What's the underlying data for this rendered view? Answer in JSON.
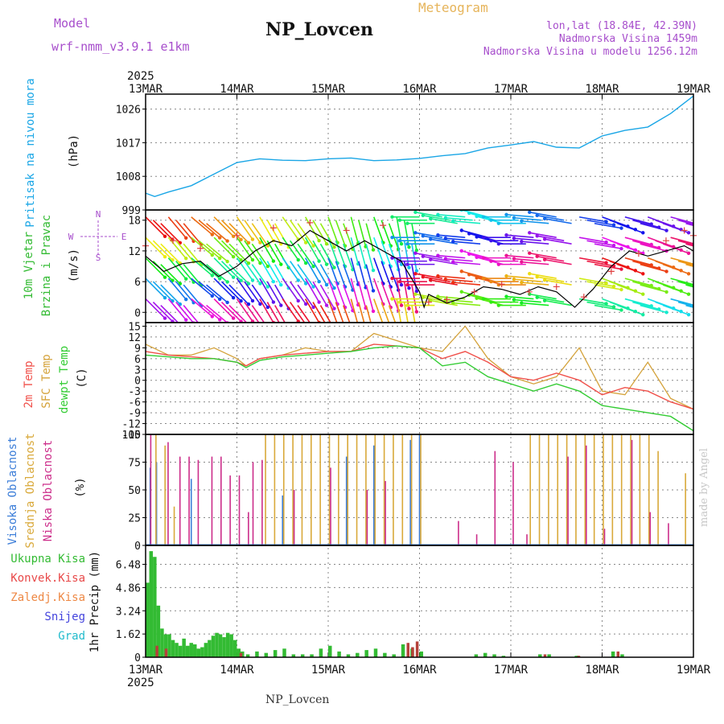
{
  "header": {
    "model_label": "Model",
    "model_name": "wrf-nmm_v3.9.1  e1km",
    "title": "NP_Lovcen",
    "product": "Meteogram",
    "location": "lon,lat (18.84E, 42.39N)",
    "elevation": "Nadmorska Visina 1459m",
    "model_elevation": "Nadmorska Visina u modelu 1256.12m",
    "footer_station": "NP_Lovcen",
    "credit": "made by Angel"
  },
  "colors": {
    "pressure": "#1aa6e6",
    "temp2m": "#f0504a",
    "sfc_temp": "#d4a23a",
    "dewpoint": "#33cc33",
    "cloud_high": "#3b7dd8",
    "cloud_mid": "#d9a93a",
    "cloud_low": "#cc2d8a",
    "precip_total": "#33bb33",
    "precip_conv": "#b5413a",
    "wind_speed": "#000000",
    "wind_gust": "#e04040",
    "grid": "#888888"
  },
  "time_axis": {
    "top_year": "2025",
    "bottom_year": "2025",
    "ticks": [
      "13MAR",
      "14MAR",
      "15MAR",
      "16MAR",
      "17MAR",
      "18MAR",
      "19MAR"
    ]
  },
  "panels": {
    "pressure": {
      "label_line1": "Pritisak na nivou mora",
      "unit": "(hPa)"
    },
    "wind": {
      "label_line1": "10m Vjetar",
      "label_line2": "Brzina i Pravac",
      "unit": "(m/s)",
      "compass_n": "N",
      "compass_s": "S",
      "compass_w": "W",
      "compass_e": "E"
    },
    "temp": {
      "label_2m": "2m Temp",
      "label_sfc": "SFC Temp",
      "label_dew": "dewpt Temp",
      "unit": "(C)"
    },
    "cloud": {
      "label_high": "Visoka Oblacnost",
      "label_mid": "Srednja Oblacnost",
      "label_low": "Niska Oblacnost",
      "unit": "(%)"
    },
    "precip": {
      "unit_label": "1hr Precip (mm)",
      "legend": [
        "Ukupna Kisa",
        "Konvek.Kisa",
        "Zaledj.Kisa",
        "Snijeg",
        "Grad"
      ]
    }
  },
  "chart_data": [
    {
      "type": "line",
      "panel": "pressure",
      "ylim": [
        999,
        1030
      ],
      "yticks": [
        "1026",
        "1017",
        "1008",
        "999"
      ],
      "ytick_values": [
        1026,
        1017,
        1008,
        999
      ],
      "series": [
        {
          "name": "Pritisak na nivou mora",
          "x": [
            0,
            0.1,
            0.25,
            0.5,
            0.75,
            1,
            1.25,
            1.5,
            1.75,
            2,
            2.25,
            2.5,
            2.75,
            3,
            3.25,
            3.5,
            3.75,
            4,
            4.25,
            4.5,
            4.75,
            5,
            5.25,
            5.5,
            5.75,
            6
          ],
          "values": [
            1003.5,
            1002.6,
            1003.8,
            1005.5,
            1008.6,
            1011.7,
            1012.7,
            1012.3,
            1012.2,
            1012.7,
            1012.9,
            1012.2,
            1012.4,
            1012.8,
            1013.5,
            1014.1,
            1015.6,
            1016.4,
            1017.3,
            1015.8,
            1015.6,
            1018.8,
            1020.3,
            1021.2,
            1024.8,
            1029.5
          ]
        }
      ]
    },
    {
      "type": "line",
      "panel": "wind",
      "ylim": [
        -2,
        20
      ],
      "yticks": [
        "18",
        "12",
        "6",
        "0"
      ],
      "ytick_values": [
        18,
        12,
        6,
        0
      ],
      "series": [
        {
          "name": "speed",
          "x": [
            0,
            0.2,
            0.4,
            0.6,
            0.8,
            1,
            1.2,
            1.4,
            1.6,
            1.8,
            2,
            2.2,
            2.4,
            2.6,
            2.8,
            3,
            3.05,
            3.1,
            3.3,
            3.5,
            3.7,
            3.9,
            4.1,
            4.3,
            4.5,
            4.7,
            4.9,
            5.1,
            5.3,
            5.5,
            5.7,
            5.9,
            6
          ],
          "values": [
            11,
            8,
            9.5,
            10,
            7,
            9,
            12,
            14,
            13,
            16,
            14,
            12,
            14,
            12,
            10,
            4,
            1,
            3.5,
            1.8,
            3,
            5,
            4.5,
            3.5,
            5,
            4,
            1,
            4.5,
            9,
            12,
            11,
            12,
            13,
            12
          ]
        },
        {
          "name": "gust",
          "x": [
            0,
            0.3,
            0.6,
            1,
            1.4,
            1.8,
            2.2,
            2.6,
            3.1,
            3.3,
            3.6,
            3.9,
            4.2,
            4.5,
            4.8,
            5.1,
            5.4,
            5.7,
            5.9,
            6
          ],
          "values": [
            13,
            14,
            12.5,
            15,
            16.5,
            17.5,
            16,
            17,
            2,
            2.5,
            4,
            5.5,
            4,
            5,
            3,
            8,
            11.5,
            14,
            16,
            15
          ]
        }
      ],
      "barbs": [
        {
          "x": 0.0,
          "dir": 225
        },
        {
          "x": 0.25,
          "dir": 220
        },
        {
          "x": 0.5,
          "dir": 230
        },
        {
          "x": 0.75,
          "dir": 225
        },
        {
          "x": 1.0,
          "dir": 215
        },
        {
          "x": 1.25,
          "dir": 210
        },
        {
          "x": 1.5,
          "dir": 215
        },
        {
          "x": 1.75,
          "dir": 210
        },
        {
          "x": 2.0,
          "dir": 200
        },
        {
          "x": 2.25,
          "dir": 195
        },
        {
          "x": 2.5,
          "dir": 200
        },
        {
          "x": 2.75,
          "dir": 190
        },
        {
          "x": 3.0,
          "dir": 90
        },
        {
          "x": 3.25,
          "dir": 80
        },
        {
          "x": 3.5,
          "dir": 85
        },
        {
          "x": 3.75,
          "dir": 75
        },
        {
          "x": 4.0,
          "dir": 90
        },
        {
          "x": 4.25,
          "dir": 85
        },
        {
          "x": 4.5,
          "dir": 80
        },
        {
          "x": 4.75,
          "dir": 260
        },
        {
          "x": 5.0,
          "dir": 250
        },
        {
          "x": 5.25,
          "dir": 255
        },
        {
          "x": 5.5,
          "dir": 250
        },
        {
          "x": 5.75,
          "dir": 255
        }
      ]
    },
    {
      "type": "line",
      "panel": "temp",
      "ylim": [
        -15,
        16
      ],
      "yticks": [
        "15",
        "12",
        "9",
        "6",
        "3",
        "0",
        "-3",
        "-6",
        "-9",
        "-12",
        "-15"
      ],
      "ytick_values": [
        15,
        12,
        9,
        6,
        3,
        0,
        -3,
        -6,
        -9,
        -12,
        -15
      ],
      "series": [
        {
          "name": "2m Temp",
          "x": [
            0,
            0.25,
            0.5,
            0.75,
            1,
            1.1,
            1.25,
            1.5,
            1.75,
            2,
            2.25,
            2.5,
            2.75,
            3,
            3.25,
            3.5,
            3.75,
            4,
            4.25,
            4.5,
            4.75,
            5,
            5.25,
            5.5,
            5.75,
            6
          ],
          "values": [
            8,
            7,
            6.5,
            6,
            5,
            4,
            6,
            7,
            7.5,
            8,
            8,
            10,
            9.5,
            9,
            6,
            8,
            5,
            1,
            0,
            2,
            0,
            -4,
            -2,
            -3,
            -6,
            -8
          ]
        },
        {
          "name": "SFC Temp",
          "x": [
            0,
            0.25,
            0.5,
            0.75,
            1,
            1.1,
            1.25,
            1.5,
            1.75,
            2,
            2.25,
            2.5,
            2.75,
            3,
            3.25,
            3.5,
            3.75,
            4,
            4.25,
            4.5,
            4.75,
            5,
            5.25,
            5.5,
            5.75,
            6
          ],
          "values": [
            10,
            7,
            7,
            9,
            6,
            4,
            6,
            7,
            9,
            8,
            8,
            13,
            11,
            9,
            8,
            15,
            6,
            1,
            -1,
            1,
            9,
            -3,
            -4,
            5,
            -5,
            -8
          ]
        },
        {
          "name": "dewpt Temp",
          "x": [
            0,
            0.25,
            0.5,
            0.75,
            1,
            1.1,
            1.25,
            1.5,
            1.75,
            2,
            2.25,
            2.5,
            2.75,
            3,
            3.25,
            3.5,
            3.75,
            4,
            4.25,
            4.5,
            4.75,
            5,
            5.25,
            5.5,
            5.75,
            6
          ],
          "values": [
            7,
            6.5,
            6,
            6,
            5,
            3.5,
            5.5,
            6.5,
            7,
            7.5,
            8,
            9,
            9.5,
            9,
            4,
            5,
            1,
            -1,
            -3,
            -1,
            -3,
            -7,
            -8,
            -9,
            -10,
            -14
          ]
        }
      ]
    },
    {
      "type": "bar",
      "panel": "cloud",
      "ylim": [
        0,
        100
      ],
      "yticks": [
        "100",
        "75",
        "50",
        "25",
        "0"
      ],
      "ytick_values": [
        100,
        75,
        50,
        25,
        0
      ],
      "series": [
        {
          "name": "Visoka Oblacnost",
          "x": [
            0.05,
            0.12,
            0.5,
            1.5,
            2.2,
            2.5,
            2.9,
            3.0
          ],
          "values": [
            70,
            75,
            60,
            45,
            80,
            90,
            95,
            100
          ]
        },
        {
          "name": "Srednja Oblacnost",
          "x": [
            0.1,
            0.2,
            0.3,
            1.3,
            1.4,
            1.5,
            1.6,
            1.7,
            1.8,
            1.9,
            2.0,
            2.1,
            2.2,
            2.3,
            2.4,
            2.5,
            2.6,
            2.7,
            2.8,
            2.9,
            3.0,
            4.2,
            4.3,
            4.4,
            4.5,
            4.6,
            4.7,
            4.8,
            4.9,
            5.0,
            5.1,
            5.2,
            5.3,
            5.4,
            5.5,
            5.6,
            5.9
          ],
          "values": [
            100,
            90,
            35,
            100,
            100,
            100,
            100,
            100,
            100,
            100,
            100,
            100,
            100,
            100,
            100,
            100,
            100,
            100,
            100,
            100,
            100,
            100,
            100,
            100,
            100,
            100,
            100,
            100,
            100,
            100,
            100,
            100,
            100,
            100,
            100,
            85,
            65
          ]
        },
        {
          "name": "Niska Oblacnost",
          "x": [
            0.03,
            0.22,
            0.35,
            0.45,
            0.55,
            0.7,
            0.8,
            0.9,
            1.0,
            1.1,
            1.15,
            1.25,
            1.6,
            2.0,
            2.4,
            2.6,
            3.4,
            3.6,
            3.8,
            4.0,
            4.15,
            4.6,
            4.8,
            5.0,
            5.3,
            5.5,
            5.7
          ],
          "values": [
            100,
            93,
            80,
            80,
            77,
            80,
            80,
            63,
            63,
            30,
            75,
            77,
            50,
            70,
            50,
            58,
            22,
            10,
            85,
            75,
            10,
            80,
            90,
            15,
            95,
            30,
            20
          ]
        }
      ]
    },
    {
      "type": "bar",
      "panel": "precip",
      "ylim": [
        0,
        7.8
      ],
      "yticks": [
        "6.48",
        "4.86",
        "3.24",
        "1.62",
        "0"
      ],
      "ytick_values": [
        6.48,
        4.86,
        3.24,
        1.62,
        0
      ],
      "series": [
        {
          "name": "Ukupna Kisa",
          "x": [
            0.0,
            0.04,
            0.08,
            0.12,
            0.16,
            0.2,
            0.24,
            0.28,
            0.32,
            0.36,
            0.4,
            0.44,
            0.48,
            0.52,
            0.56,
            0.6,
            0.64,
            0.68,
            0.72,
            0.76,
            0.8,
            0.84,
            0.88,
            0.92,
            0.96,
            1.0,
            1.04,
            1.1,
            1.2,
            1.3,
            1.4,
            1.5,
            1.6,
            1.7,
            1.8,
            1.9,
            2.0,
            2.1,
            2.2,
            2.3,
            2.4,
            2.5,
            2.6,
            2.7,
            2.8,
            2.9,
            3.0,
            3.6,
            3.7,
            3.8,
            3.9,
            4.3,
            4.4,
            4.7,
            5.1,
            5.2
          ],
          "values": [
            5.2,
            7.4,
            7.0,
            3.6,
            2.0,
            1.6,
            1.6,
            1.2,
            1.0,
            0.8,
            1.3,
            0.8,
            1.0,
            0.9,
            0.6,
            0.7,
            1.0,
            1.2,
            1.5,
            1.7,
            1.6,
            1.4,
            1.7,
            1.6,
            1.2,
            0.6,
            0.4,
            0.2,
            0.4,
            0.3,
            0.5,
            0.6,
            0.2,
            0.2,
            0.2,
            0.6,
            0.8,
            0.4,
            0.2,
            0.3,
            0.5,
            0.6,
            0.3,
            0.2,
            0.9,
            0.6,
            0.4,
            0.2,
            0.3,
            0.2,
            0.1,
            0.2,
            0.2,
            0.1,
            0.4,
            0.2
          ]
        },
        {
          "name": "Konvek.Kisa",
          "x": [
            0.1,
            0.2,
            1.02,
            2.85,
            2.9,
            2.95,
            4.35,
            4.72,
            5.15
          ],
          "values": [
            0.8,
            0.6,
            0.3,
            1.0,
            0.7,
            1.1,
            0.2,
            0.1,
            0.4
          ]
        }
      ]
    }
  ]
}
